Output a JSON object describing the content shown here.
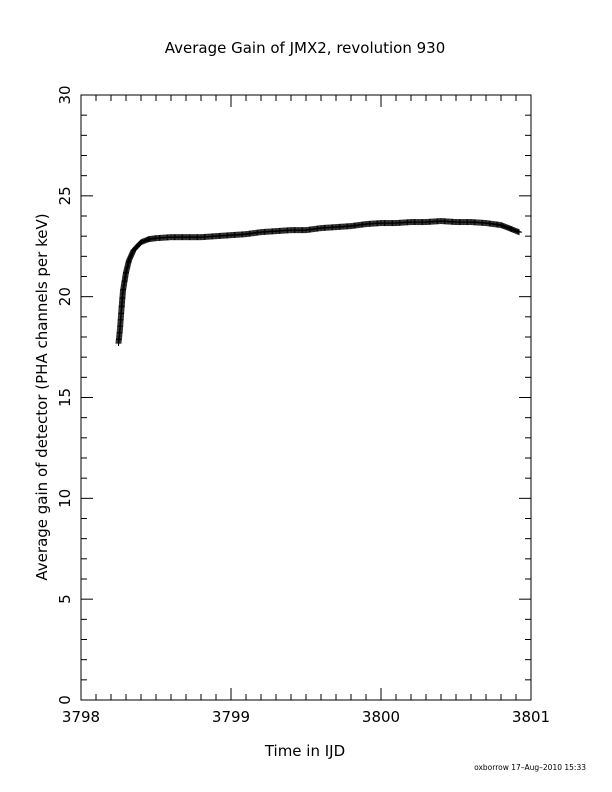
{
  "chart_data": {
    "type": "scatter",
    "title": "Average Gain of JMX2, revolution 930",
    "xlabel": "Time in IJD",
    "ylabel": "Average gain of detector (PHA channels per keV)",
    "xlim": [
      3798,
      3801
    ],
    "ylim": [
      0,
      30
    ],
    "x_ticks": [
      "3798",
      "3799",
      "3800",
      "3801"
    ],
    "y_ticks": [
      "0",
      "5",
      "10",
      "15",
      "20",
      "25",
      "30"
    ],
    "marker": "plus",
    "marker_color": "#000000",
    "curve": [
      [
        3798.25,
        17.7
      ],
      [
        3798.26,
        18.4
      ],
      [
        3798.27,
        19.4
      ],
      [
        3798.28,
        20.3
      ],
      [
        3798.3,
        21.2
      ],
      [
        3798.32,
        21.8
      ],
      [
        3798.35,
        22.3
      ],
      [
        3798.4,
        22.7
      ],
      [
        3798.45,
        22.85
      ],
      [
        3798.5,
        22.9
      ],
      [
        3798.6,
        22.95
      ],
      [
        3798.7,
        22.95
      ],
      [
        3798.8,
        22.95
      ],
      [
        3798.9,
        23.0
      ],
      [
        3799.0,
        23.05
      ],
      [
        3799.1,
        23.1
      ],
      [
        3799.2,
        23.2
      ],
      [
        3799.3,
        23.25
      ],
      [
        3799.4,
        23.3
      ],
      [
        3799.5,
        23.3
      ],
      [
        3799.6,
        23.4
      ],
      [
        3799.7,
        23.45
      ],
      [
        3799.8,
        23.5
      ],
      [
        3799.9,
        23.6
      ],
      [
        3800.0,
        23.65
      ],
      [
        3800.1,
        23.65
      ],
      [
        3800.2,
        23.7
      ],
      [
        3800.3,
        23.7
      ],
      [
        3800.4,
        23.75
      ],
      [
        3800.5,
        23.7
      ],
      [
        3800.6,
        23.7
      ],
      [
        3800.7,
        23.65
      ],
      [
        3800.8,
        23.55
      ],
      [
        3800.87,
        23.35
      ],
      [
        3800.92,
        23.2
      ]
    ]
  },
  "footer": {
    "stamp": "oxborrow 17–Aug–2010 15:33"
  }
}
